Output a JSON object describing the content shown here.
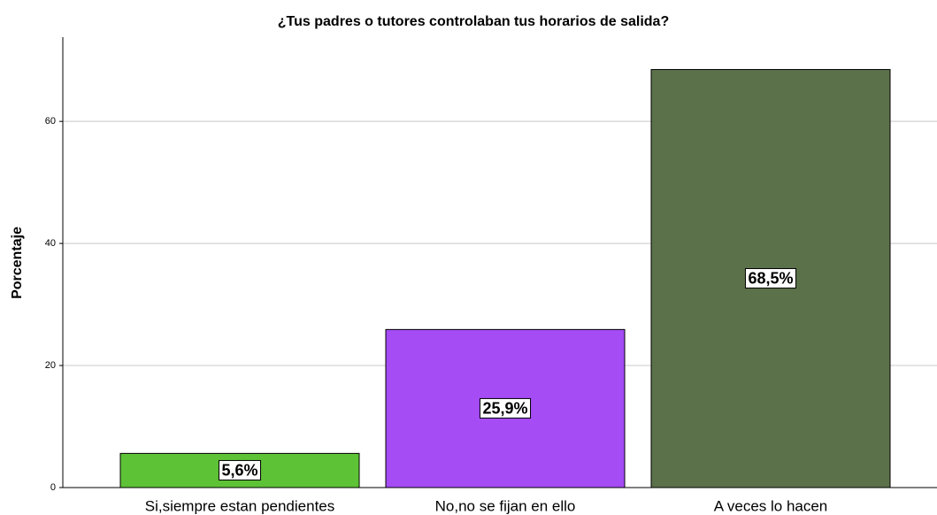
{
  "chart_data": {
    "type": "bar",
    "title": "¿Tus padres o tutores controlaban tus horarios de salida?",
    "y_label": "Porcentaje",
    "categories": [
      "Si,siempre estan pendientes",
      "No,no se fijan en ello",
      "A veces lo hacen"
    ],
    "values": [
      5.6,
      25.9,
      68.5
    ],
    "value_labels": [
      "5,6%",
      "25,9%",
      "68,5%"
    ],
    "colors": [
      "#5ec236",
      "#a54cf5",
      "#5b714a"
    ],
    "ylim": [
      0,
      73.8
    ],
    "yticks": [
      0,
      20,
      40,
      60
    ],
    "grid": true
  }
}
